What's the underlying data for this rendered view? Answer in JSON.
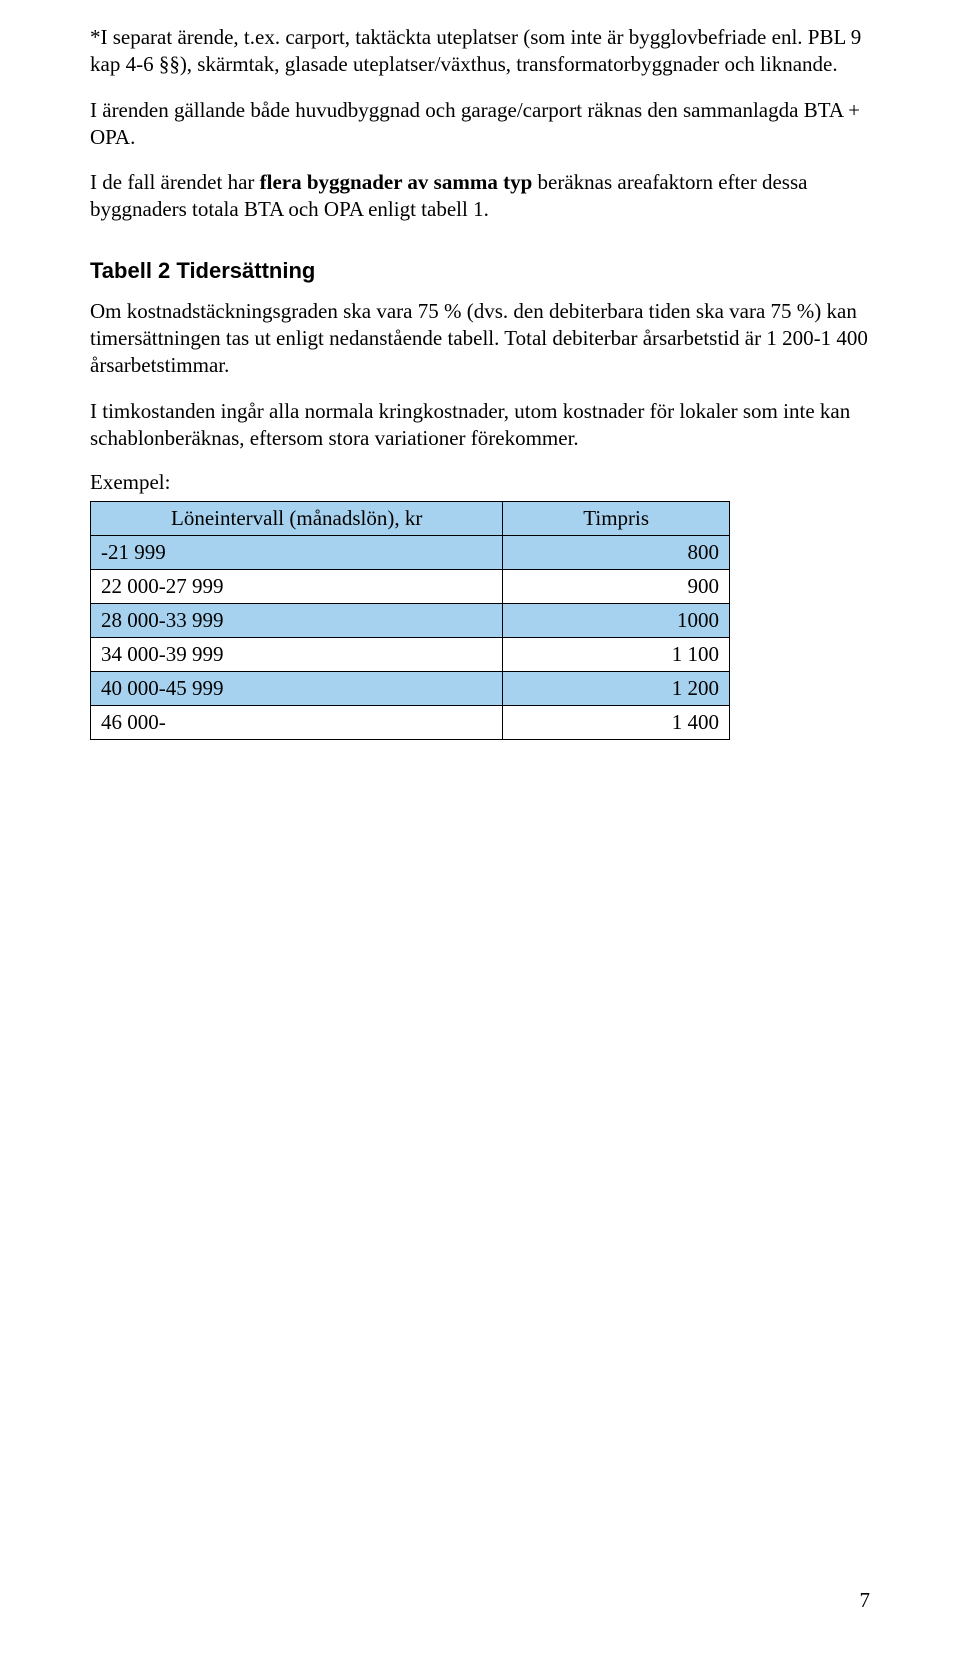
{
  "paragraphs": {
    "p1": "*I separat ärende, t.ex. carport, taktäckta uteplatser (som inte är bygglovbefriade enl. PBL 9 kap 4-6 §§), skärmtak, glasade uteplatser/växthus, transformatorbyggnader och liknande.",
    "p2": "I ärenden gällande både huvudbyggnad och garage/carport räknas den sammanlagda BTA + OPA.",
    "p3_pre": "I de fall ärendet har ",
    "p3_bold": "flera byggnader av samma typ",
    "p3_post": " beräknas areafaktorn efter dessa byggnaders totala BTA och OPA enligt tabell 1."
  },
  "heading": "Tabell 2 Tidersättning",
  "body": {
    "b1": "Om kostnadstäckningsgraden ska vara 75 % (dvs. den debiterbara tiden ska vara 75 %) kan timersättningen tas ut enligt nedanstående tabell. Total debiterbar årsarbetstid är 1 200-1 400 årsarbetstimmar.",
    "b2": "I timkostanden ingår alla normala kringkostnader, utom kostnader för lokaler som inte kan schablonberäknas, eftersom stora variationer förekommer.",
    "example": "Exempel:"
  },
  "table": {
    "header_left": "Löneintervall (månadslön), kr",
    "header_right": "Timpris",
    "rows": [
      {
        "label": "-21 999",
        "value": "800",
        "shaded": true
      },
      {
        "label": "22 000-27 999",
        "value": "900",
        "shaded": false
      },
      {
        "label": "28 000-33 999",
        "value": "1000",
        "shaded": true
      },
      {
        "label": "34 000-39 999",
        "value": "1 100",
        "shaded": false
      },
      {
        "label": "40 000-45 999",
        "value": "1 200",
        "shaded": true
      },
      {
        "label": "46 000-",
        "value": "1 400",
        "shaded": false
      }
    ]
  },
  "page_number": "7",
  "colors": {
    "row_shade": "#a7d2ef",
    "border": "#000000",
    "bg": "#ffffff",
    "text": "#000000"
  }
}
